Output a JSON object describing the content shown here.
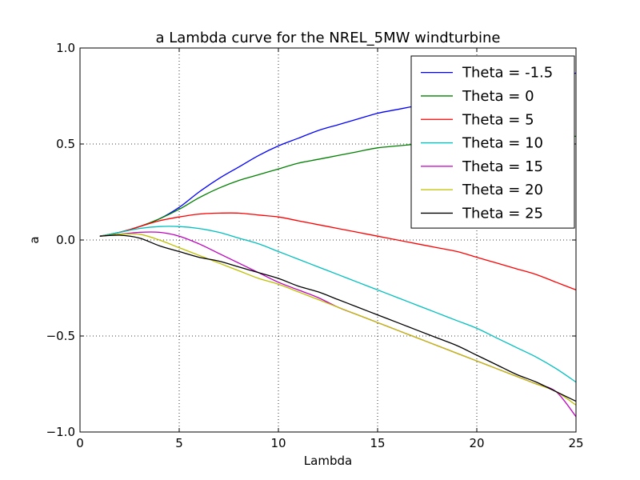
{
  "chart_data": {
    "type": "line",
    "title": "a Lambda curve for the NREL_5MW windturbine",
    "xlabel": "Lambda",
    "ylabel": "a",
    "xlim": [
      0,
      25
    ],
    "ylim": [
      -1.0,
      1.0
    ],
    "xticks": [
      0,
      5,
      10,
      15,
      20,
      25
    ],
    "xtick_labels": [
      "0",
      "5",
      "10",
      "15",
      "20",
      "25"
    ],
    "yticks": [
      -1.0,
      -0.5,
      0.0,
      0.5,
      1.0
    ],
    "ytick_labels": [
      "−1.0",
      "−0.5",
      "0.0",
      "0.5",
      "1.0"
    ],
    "grid": true,
    "legend_position": "top-right",
    "x": [
      1,
      2,
      3,
      4,
      5,
      6,
      7,
      8,
      9,
      10,
      11,
      12,
      13,
      14,
      15,
      16,
      17,
      18,
      19,
      20,
      21,
      22,
      23,
      24,
      25
    ],
    "series": [
      {
        "name": "Theta = -1.5",
        "color": "#0000ff",
        "values": [
          0.02,
          0.04,
          0.07,
          0.11,
          0.17,
          0.25,
          0.32,
          0.38,
          0.44,
          0.49,
          0.53,
          0.57,
          0.6,
          0.63,
          0.66,
          0.68,
          0.7,
          0.72,
          0.74,
          0.76,
          0.78,
          0.8,
          0.82,
          0.84,
          0.87
        ]
      },
      {
        "name": "Theta = 0",
        "color": "#008000",
        "values": [
          0.02,
          0.04,
          0.07,
          0.11,
          0.16,
          0.22,
          0.27,
          0.31,
          0.34,
          0.37,
          0.4,
          0.42,
          0.44,
          0.46,
          0.48,
          0.49,
          0.5,
          0.51,
          0.52,
          0.52,
          0.53,
          0.53,
          0.54,
          0.54,
          0.54
        ]
      },
      {
        "name": "Theta = 5",
        "color": "#ff0000",
        "values": [
          0.02,
          0.04,
          0.07,
          0.1,
          0.12,
          0.135,
          0.14,
          0.14,
          0.13,
          0.12,
          0.1,
          0.08,
          0.06,
          0.04,
          0.02,
          0.0,
          -0.02,
          -0.04,
          -0.06,
          -0.09,
          -0.12,
          -0.15,
          -0.18,
          -0.22,
          -0.26
        ]
      },
      {
        "name": "Theta = 10",
        "color": "#00bfbf",
        "values": [
          0.02,
          0.04,
          0.06,
          0.07,
          0.07,
          0.06,
          0.04,
          0.01,
          -0.02,
          -0.06,
          -0.1,
          -0.14,
          -0.18,
          -0.22,
          -0.26,
          -0.3,
          -0.34,
          -0.38,
          -0.42,
          -0.46,
          -0.51,
          -0.56,
          -0.61,
          -0.67,
          -0.74
        ]
      },
      {
        "name": "Theta = 15",
        "color": "#bf00bf",
        "values": [
          0.02,
          0.03,
          0.04,
          0.04,
          0.02,
          -0.02,
          -0.07,
          -0.12,
          -0.17,
          -0.22,
          -0.26,
          -0.3,
          -0.35,
          -0.39,
          -0.43,
          -0.47,
          -0.51,
          -0.55,
          -0.59,
          -0.63,
          -0.67,
          -0.71,
          -0.75,
          -0.79,
          -0.92
        ]
      },
      {
        "name": "Theta = 20",
        "color": "#bfbf00",
        "values": [
          0.02,
          0.03,
          0.03,
          0.0,
          -0.04,
          -0.08,
          -0.12,
          -0.16,
          -0.2,
          -0.23,
          -0.27,
          -0.31,
          -0.35,
          -0.39,
          -0.43,
          -0.47,
          -0.51,
          -0.55,
          -0.59,
          -0.63,
          -0.67,
          -0.71,
          -0.75,
          -0.79,
          -0.86
        ]
      },
      {
        "name": "Theta = 25",
        "color": "#000000",
        "values": [
          0.02,
          0.025,
          0.01,
          -0.03,
          -0.06,
          -0.09,
          -0.11,
          -0.14,
          -0.17,
          -0.2,
          -0.24,
          -0.27,
          -0.31,
          -0.35,
          -0.39,
          -0.43,
          -0.47,
          -0.51,
          -0.55,
          -0.6,
          -0.65,
          -0.7,
          -0.74,
          -0.79,
          -0.84
        ]
      }
    ]
  }
}
